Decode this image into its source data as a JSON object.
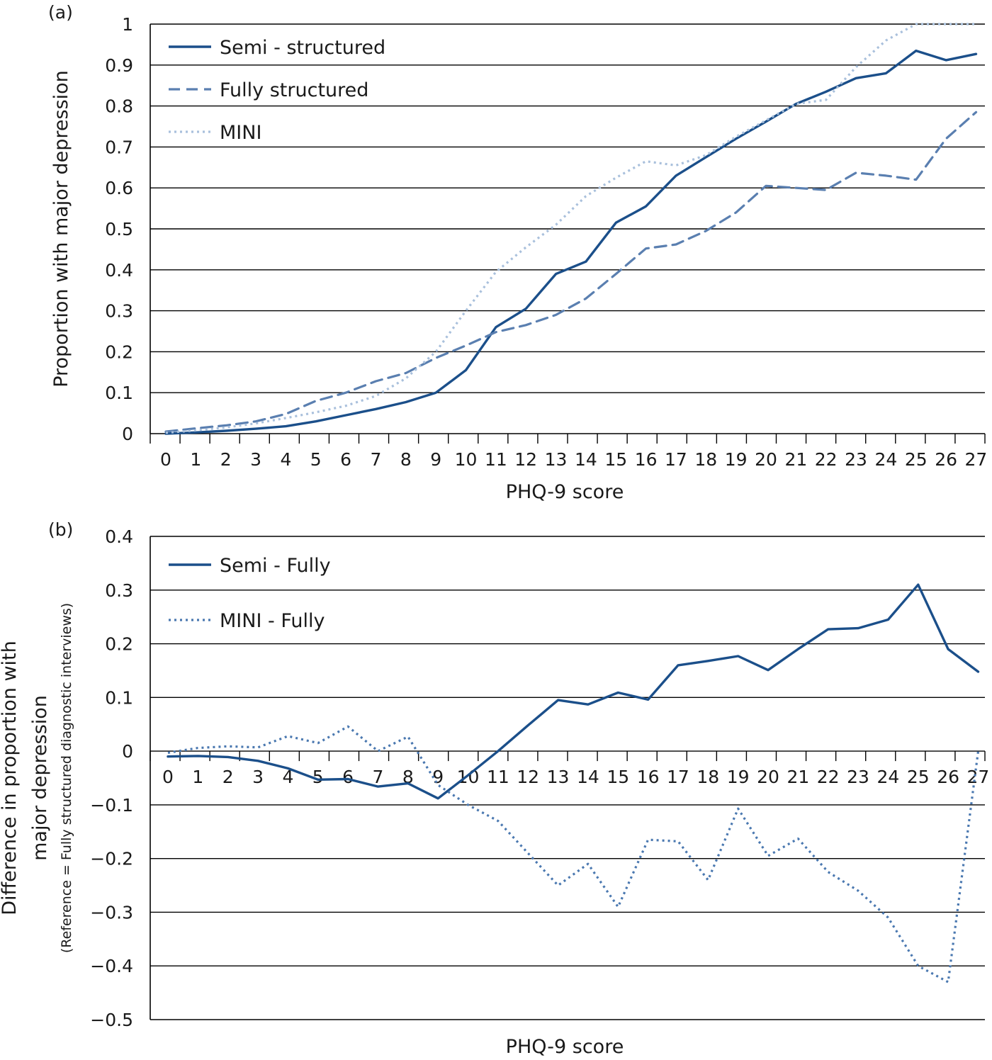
{
  "colors": {
    "semi": "#1b4f8a",
    "fully": "#5a7fb0",
    "mini_a": "#a9c0dc",
    "mini_b": "#4a78b0",
    "grid": "#000000",
    "text": "#1a1a1a"
  },
  "chart_data": [
    {
      "type": "line",
      "panel_label": "(a)",
      "title": "",
      "xlabel": "PHQ-9 score",
      "ylabel": "Proportion with major depression",
      "ylabel_sub": "",
      "x": [
        0,
        1,
        2,
        3,
        4,
        5,
        6,
        7,
        8,
        9,
        10,
        11,
        12,
        13,
        14,
        15,
        16,
        17,
        18,
        19,
        20,
        21,
        22,
        23,
        24,
        25,
        26,
        27
      ],
      "xtick_labels": [
        "0",
        "1",
        "2",
        "3",
        "4",
        "5",
        "6",
        "7",
        "8",
        "9",
        "10",
        "11",
        "12",
        "13",
        "14",
        "15",
        "16",
        "17",
        "18",
        "19",
        "20",
        "21",
        "22",
        "23",
        "24",
        "25",
        "26",
        "27"
      ],
      "ylim": [
        0,
        1
      ],
      "yticks": [
        0,
        0.1,
        0.2,
        0.3,
        0.4,
        0.5,
        0.6,
        0.7,
        0.8,
        0.9,
        1
      ],
      "ytick_labels": [
        "0",
        "0.1",
        "0.2",
        "0.3",
        "0.4",
        "0.5",
        "0.6",
        "0.7",
        "0.8",
        "0.9",
        "1"
      ],
      "xtick_row": "bottom",
      "grid": true,
      "legend_position": "top-left",
      "series": [
        {
          "name": "Semi - structured",
          "style": "solid",
          "color_key": "semi",
          "values": [
            0.0,
            0.003,
            0.007,
            0.012,
            0.018,
            0.03,
            0.045,
            0.06,
            0.077,
            0.1,
            0.155,
            0.26,
            0.305,
            0.39,
            0.42,
            0.515,
            0.555,
            0.63,
            0.675,
            0.72,
            0.762,
            0.805,
            0.835,
            0.868,
            0.88,
            0.935,
            0.912,
            0.927
          ]
        },
        {
          "name": "Fully structured",
          "style": "dashed",
          "color_key": "fully",
          "values": [
            0.005,
            0.013,
            0.02,
            0.03,
            0.048,
            0.08,
            0.1,
            0.128,
            0.148,
            0.185,
            0.215,
            0.248,
            0.265,
            0.29,
            0.33,
            0.39,
            0.452,
            0.462,
            0.495,
            0.54,
            0.605,
            0.6,
            0.595,
            0.637,
            0.63,
            0.62,
            0.72,
            0.785
          ]
        },
        {
          "name": "MINI",
          "style": "dotted",
          "color_key": "mini_a",
          "values": [
            0.002,
            0.008,
            0.015,
            0.025,
            0.038,
            0.052,
            0.068,
            0.092,
            0.135,
            0.2,
            0.3,
            0.395,
            0.455,
            0.51,
            0.58,
            0.625,
            0.665,
            0.655,
            0.68,
            0.725,
            0.765,
            0.805,
            0.815,
            0.895,
            0.96,
            1.0,
            1.0,
            1.0
          ]
        }
      ]
    },
    {
      "type": "line",
      "panel_label": "(b)",
      "title": "",
      "xlabel": "PHQ-9 score",
      "ylabel": "Difference in proportion with major depression",
      "ylabel_line1": "Difference in proportion with",
      "ylabel_line2": "major depression",
      "ylabel_sub": "(Reference = Fully structured diagnostic interviews)",
      "x": [
        0,
        1,
        2,
        3,
        4,
        5,
        6,
        7,
        8,
        9,
        10,
        11,
        12,
        13,
        14,
        15,
        16,
        17,
        18,
        19,
        20,
        21,
        22,
        23,
        24,
        25,
        26,
        27
      ],
      "xtick_labels": [
        "0",
        "1",
        "2",
        "3",
        "4",
        "5",
        "6",
        "7",
        "8",
        "9",
        "10",
        "11",
        "12",
        "13",
        "14",
        "15",
        "16",
        "17",
        "18",
        "19",
        "20",
        "21",
        "22",
        "23",
        "24",
        "25",
        "26",
        "27"
      ],
      "ylim": [
        -0.5,
        0.4
      ],
      "yticks": [
        -0.5,
        -0.4,
        -0.3,
        -0.2,
        -0.1,
        0,
        0.1,
        0.2,
        0.3,
        0.4
      ],
      "ytick_labels": [
        "−0.5",
        "−0.4",
        "−0.3",
        "−0.2",
        "−0.1",
        "0",
        "0.1",
        "0.2",
        "0.3",
        "0.4"
      ],
      "xtick_row": "zero",
      "grid": true,
      "legend_position": "top-left",
      "series": [
        {
          "name": "Semi - Fully",
          "style": "solid",
          "color_key": "semi",
          "values": [
            -0.01,
            -0.009,
            -0.011,
            -0.018,
            -0.032,
            -0.053,
            -0.052,
            -0.066,
            -0.06,
            -0.088,
            -0.045,
            0.0,
            0.048,
            0.095,
            0.087,
            0.109,
            0.096,
            0.16,
            0.168,
            0.177,
            0.151,
            0.19,
            0.227,
            0.229,
            0.245,
            0.31,
            0.19,
            0.148
          ]
        },
        {
          "name": "MINI - Fully",
          "style": "dotted",
          "color_key": "mini_b",
          "values": [
            -0.003,
            0.006,
            0.009,
            0.007,
            0.028,
            0.015,
            0.046,
            0.0,
            0.027,
            -0.063,
            -0.1,
            -0.13,
            -0.19,
            -0.25,
            -0.21,
            -0.29,
            -0.165,
            -0.168,
            -0.24,
            -0.107,
            -0.195,
            -0.163,
            -0.225,
            -0.26,
            -0.31,
            -0.4,
            -0.43,
            0.0
          ]
        }
      ]
    }
  ]
}
